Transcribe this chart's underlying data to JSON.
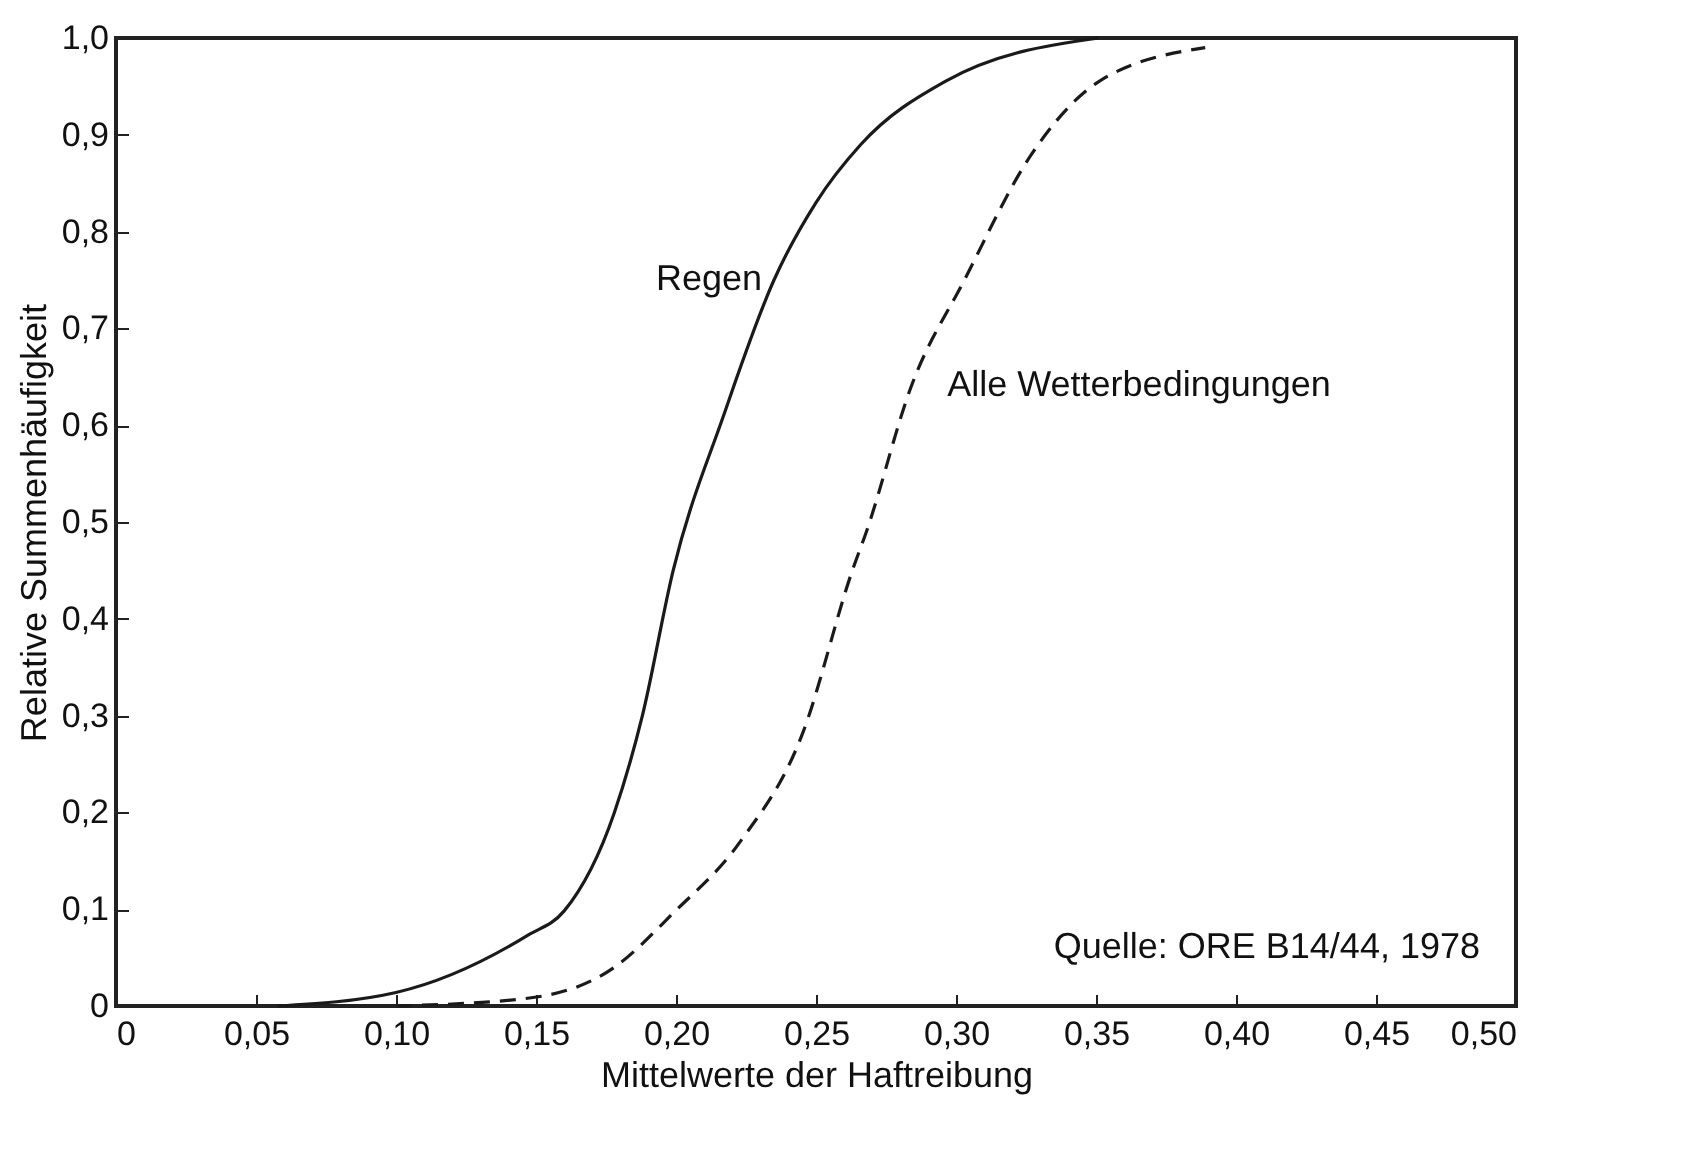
{
  "chart_data": {
    "type": "line",
    "xlabel": "Mittelwerte der Haftreibung",
    "ylabel": "Relative Summenhäufigkeit",
    "xlim": [
      0,
      0.5
    ],
    "ylim": [
      0,
      1.0
    ],
    "xticks": [
      0,
      {
        "value": 0.05,
        "label": "0,05"
      },
      {
        "value": 0.1,
        "label": "0,10"
      },
      {
        "value": 0.15,
        "label": "0,15"
      },
      {
        "value": 0.2,
        "label": "0,20"
      },
      {
        "value": 0.25,
        "label": "0,25"
      },
      {
        "value": 0.3,
        "label": "0,30"
      },
      {
        "value": 0.35,
        "label": "0,35"
      },
      {
        "value": 0.4,
        "label": "0,40"
      },
      {
        "value": 0.45,
        "label": "0,45"
      },
      {
        "value": 0.5,
        "label": "0,50"
      }
    ],
    "yticks": [
      0,
      {
        "value": 0.1,
        "label": "0,1"
      },
      {
        "value": 0.2,
        "label": "0,2"
      },
      {
        "value": 0.3,
        "label": "0,3"
      },
      {
        "value": 0.4,
        "label": "0,4"
      },
      {
        "value": 0.5,
        "label": "0,5"
      },
      {
        "value": 0.6,
        "label": "0,6"
      },
      {
        "value": 0.7,
        "label": "0,7"
      },
      {
        "value": 0.8,
        "label": "0,8"
      },
      {
        "value": 0.9,
        "label": "0,9"
      },
      {
        "value": 1.0,
        "label": "1,0"
      }
    ],
    "grid": false,
    "legend": false,
    "marker": "none",
    "series": [
      {
        "name": "Regen",
        "color": "#1a1a1a",
        "line_style": "solid",
        "x": [
          0.0575,
          0.1,
          0.147,
          0.16,
          0.178,
          0.188,
          0.199,
          0.217,
          0.235,
          0.25,
          0.266,
          0.296,
          0.351
        ],
        "values": [
          0,
          0.014,
          0.073,
          0.098,
          0.2,
          0.3,
          0.45,
          0.61,
          0.75,
          0.83,
          0.89,
          0.955,
          1.0
        ]
      },
      {
        "name": "Alle Wetterbedingungen",
        "color": "#1a1a1a",
        "line_style": "dashed",
        "x": [
          0.1,
          0.147,
          0.178,
          0.199,
          0.223,
          0.245,
          0.263,
          0.268,
          0.284,
          0.303,
          0.327,
          0.351,
          0.389
        ],
        "values": [
          0,
          0.008,
          0.04,
          0.096,
          0.17,
          0.28,
          0.45,
          0.49,
          0.64,
          0.75,
          0.88,
          0.955,
          0.99
        ]
      }
    ],
    "annotations": [
      "Quelle: ORE B14/44, 1978"
    ]
  }
}
